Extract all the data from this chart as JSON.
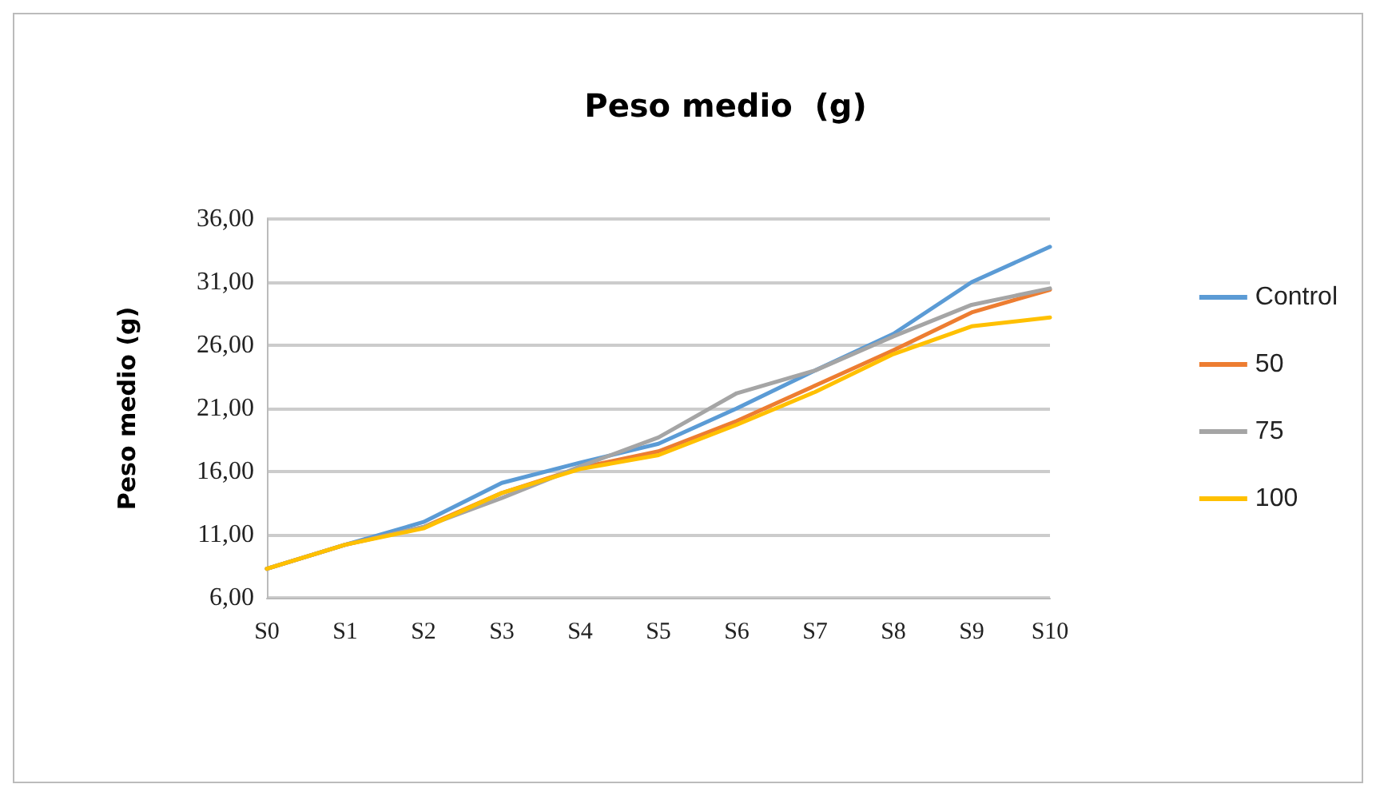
{
  "chart_data": {
    "type": "line",
    "title": "Peso medio  (g)",
    "ylabel": "Peso medio (g)",
    "categories": [
      "S0",
      "S1",
      "S2",
      "S3",
      "S4",
      "S5",
      "S6",
      "S7",
      "S8",
      "S9",
      "S10"
    ],
    "series": [
      {
        "name": "Control",
        "color": "#5b9bd5",
        "values": [
          8.3,
          10.2,
          12.0,
          15.1,
          16.7,
          18.2,
          21.0,
          24.0,
          26.9,
          31.0,
          33.8
        ]
      },
      {
        "name": "50",
        "color": "#ed7d31",
        "values": [
          8.3,
          10.2,
          11.6,
          14.3,
          16.3,
          17.6,
          20.0,
          22.8,
          25.6,
          28.6,
          30.4
        ]
      },
      {
        "name": "75",
        "color": "#a5a5a5",
        "values": [
          8.3,
          10.2,
          11.6,
          13.9,
          16.4,
          18.7,
          22.2,
          24.0,
          26.7,
          29.2,
          30.5
        ]
      },
      {
        "name": "100",
        "color": "#ffc000",
        "values": [
          8.3,
          10.2,
          11.5,
          14.3,
          16.2,
          17.3,
          19.7,
          22.3,
          25.3,
          27.5,
          28.2
        ]
      }
    ],
    "ylim": [
      6,
      36
    ],
    "yticks": [
      {
        "value": 6,
        "label": "6,00"
      },
      {
        "value": 11,
        "label": "11,00"
      },
      {
        "value": 16,
        "label": "16,00"
      },
      {
        "value": 21,
        "label": "21,00"
      },
      {
        "value": 26,
        "label": "26,00"
      },
      {
        "value": 31,
        "label": "31,00"
      },
      {
        "value": 36,
        "label": "36,00"
      }
    ],
    "grid": "y",
    "legend": "right",
    "marker": "none",
    "line_style": "solid"
  }
}
